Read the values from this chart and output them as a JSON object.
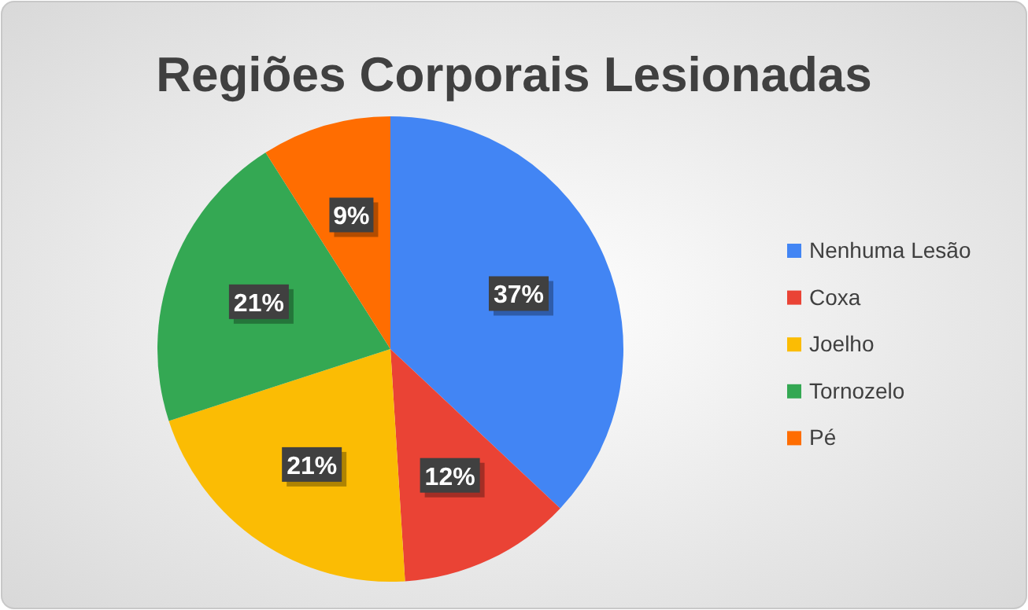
{
  "chart_data": {
    "type": "pie",
    "title": "Regiões Corporais Lesionadas",
    "categories": [
      "Nenhuma Lesão",
      "Coxa",
      "Joelho",
      "Tornozelo",
      "Pé"
    ],
    "values": [
      37,
      12,
      21,
      21,
      9
    ],
    "colors": [
      "#4285f4",
      "#ea4335",
      "#fbbc04",
      "#34a853",
      "#ff6d01"
    ],
    "value_labels": [
      "37%",
      "12%",
      "21%",
      "21%",
      "9%"
    ],
    "legend": "right"
  }
}
